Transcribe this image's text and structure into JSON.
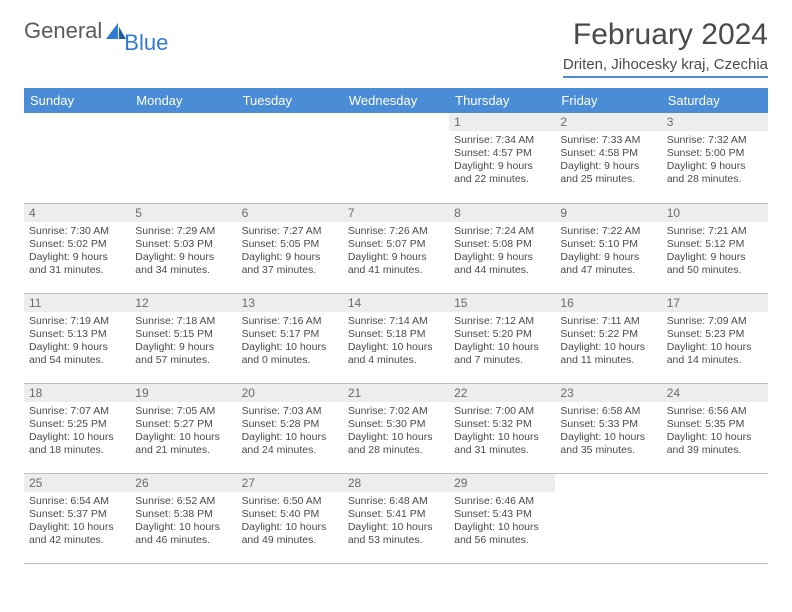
{
  "brand": {
    "general": "General",
    "blue": "Blue"
  },
  "title": "February 2024",
  "location": "Driten, Jihocesky kraj, Czechia",
  "colors": {
    "header_bg": "#4a8cd6",
    "header_text": "#ffffff",
    "daynum_bg": "#ededed",
    "text": "#4a4a4a",
    "logo_gray": "#5a5a5a",
    "logo_blue": "#2e7cd6",
    "divider": "#bfbfbf"
  },
  "weekdays": [
    "Sunday",
    "Monday",
    "Tuesday",
    "Wednesday",
    "Thursday",
    "Friday",
    "Saturday"
  ],
  "weeks": [
    [
      null,
      null,
      null,
      null,
      {
        "n": "1",
        "sunrise": "7:34 AM",
        "sunset": "4:57 PM",
        "daylight": "9 hours and 22 minutes."
      },
      {
        "n": "2",
        "sunrise": "7:33 AM",
        "sunset": "4:58 PM",
        "daylight": "9 hours and 25 minutes."
      },
      {
        "n": "3",
        "sunrise": "7:32 AM",
        "sunset": "5:00 PM",
        "daylight": "9 hours and 28 minutes."
      }
    ],
    [
      {
        "n": "4",
        "sunrise": "7:30 AM",
        "sunset": "5:02 PM",
        "daylight": "9 hours and 31 minutes."
      },
      {
        "n": "5",
        "sunrise": "7:29 AM",
        "sunset": "5:03 PM",
        "daylight": "9 hours and 34 minutes."
      },
      {
        "n": "6",
        "sunrise": "7:27 AM",
        "sunset": "5:05 PM",
        "daylight": "9 hours and 37 minutes."
      },
      {
        "n": "7",
        "sunrise": "7:26 AM",
        "sunset": "5:07 PM",
        "daylight": "9 hours and 41 minutes."
      },
      {
        "n": "8",
        "sunrise": "7:24 AM",
        "sunset": "5:08 PM",
        "daylight": "9 hours and 44 minutes."
      },
      {
        "n": "9",
        "sunrise": "7:22 AM",
        "sunset": "5:10 PM",
        "daylight": "9 hours and 47 minutes."
      },
      {
        "n": "10",
        "sunrise": "7:21 AM",
        "sunset": "5:12 PM",
        "daylight": "9 hours and 50 minutes."
      }
    ],
    [
      {
        "n": "11",
        "sunrise": "7:19 AM",
        "sunset": "5:13 PM",
        "daylight": "9 hours and 54 minutes."
      },
      {
        "n": "12",
        "sunrise": "7:18 AM",
        "sunset": "5:15 PM",
        "daylight": "9 hours and 57 minutes."
      },
      {
        "n": "13",
        "sunrise": "7:16 AM",
        "sunset": "5:17 PM",
        "daylight": "10 hours and 0 minutes."
      },
      {
        "n": "14",
        "sunrise": "7:14 AM",
        "sunset": "5:18 PM",
        "daylight": "10 hours and 4 minutes."
      },
      {
        "n": "15",
        "sunrise": "7:12 AM",
        "sunset": "5:20 PM",
        "daylight": "10 hours and 7 minutes."
      },
      {
        "n": "16",
        "sunrise": "7:11 AM",
        "sunset": "5:22 PM",
        "daylight": "10 hours and 11 minutes."
      },
      {
        "n": "17",
        "sunrise": "7:09 AM",
        "sunset": "5:23 PM",
        "daylight": "10 hours and 14 minutes."
      }
    ],
    [
      {
        "n": "18",
        "sunrise": "7:07 AM",
        "sunset": "5:25 PM",
        "daylight": "10 hours and 18 minutes."
      },
      {
        "n": "19",
        "sunrise": "7:05 AM",
        "sunset": "5:27 PM",
        "daylight": "10 hours and 21 minutes."
      },
      {
        "n": "20",
        "sunrise": "7:03 AM",
        "sunset": "5:28 PM",
        "daylight": "10 hours and 24 minutes."
      },
      {
        "n": "21",
        "sunrise": "7:02 AM",
        "sunset": "5:30 PM",
        "daylight": "10 hours and 28 minutes."
      },
      {
        "n": "22",
        "sunrise": "7:00 AM",
        "sunset": "5:32 PM",
        "daylight": "10 hours and 31 minutes."
      },
      {
        "n": "23",
        "sunrise": "6:58 AM",
        "sunset": "5:33 PM",
        "daylight": "10 hours and 35 minutes."
      },
      {
        "n": "24",
        "sunrise": "6:56 AM",
        "sunset": "5:35 PM",
        "daylight": "10 hours and 39 minutes."
      }
    ],
    [
      {
        "n": "25",
        "sunrise": "6:54 AM",
        "sunset": "5:37 PM",
        "daylight": "10 hours and 42 minutes."
      },
      {
        "n": "26",
        "sunrise": "6:52 AM",
        "sunset": "5:38 PM",
        "daylight": "10 hours and 46 minutes."
      },
      {
        "n": "27",
        "sunrise": "6:50 AM",
        "sunset": "5:40 PM",
        "daylight": "10 hours and 49 minutes."
      },
      {
        "n": "28",
        "sunrise": "6:48 AM",
        "sunset": "5:41 PM",
        "daylight": "10 hours and 53 minutes."
      },
      {
        "n": "29",
        "sunrise": "6:46 AM",
        "sunset": "5:43 PM",
        "daylight": "10 hours and 56 minutes."
      },
      null,
      null
    ]
  ],
  "labels": {
    "sunrise": "Sunrise: ",
    "sunset": "Sunset: ",
    "daylight": "Daylight: "
  }
}
